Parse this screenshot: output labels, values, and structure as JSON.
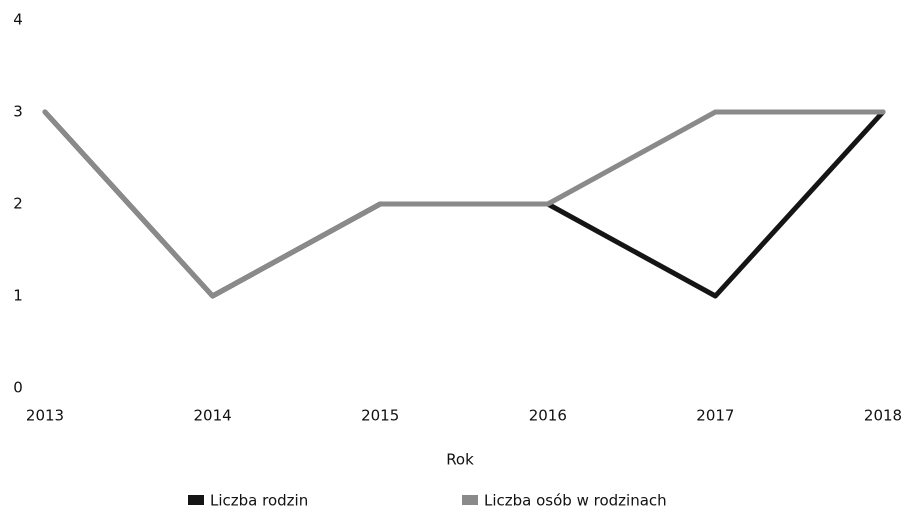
{
  "chart_data": {
    "type": "line",
    "x_label": "Rok",
    "categories": [
      "2013",
      "2014",
      "2015",
      "2016",
      "2017",
      "2018"
    ],
    "series": [
      {
        "name": "Liczba rodzin",
        "color": "#151515",
        "values": [
          3,
          1,
          2,
          2,
          1,
          3
        ]
      },
      {
        "name": "Liczba osób w rodzinach",
        "color": "#8a8a8a",
        "values": [
          3,
          1,
          2,
          2,
          3,
          3
        ]
      }
    ],
    "ylim": [
      0,
      4
    ],
    "yticks": [
      0,
      1,
      2,
      3,
      4
    ],
    "grid": false,
    "legend": "bottom"
  }
}
